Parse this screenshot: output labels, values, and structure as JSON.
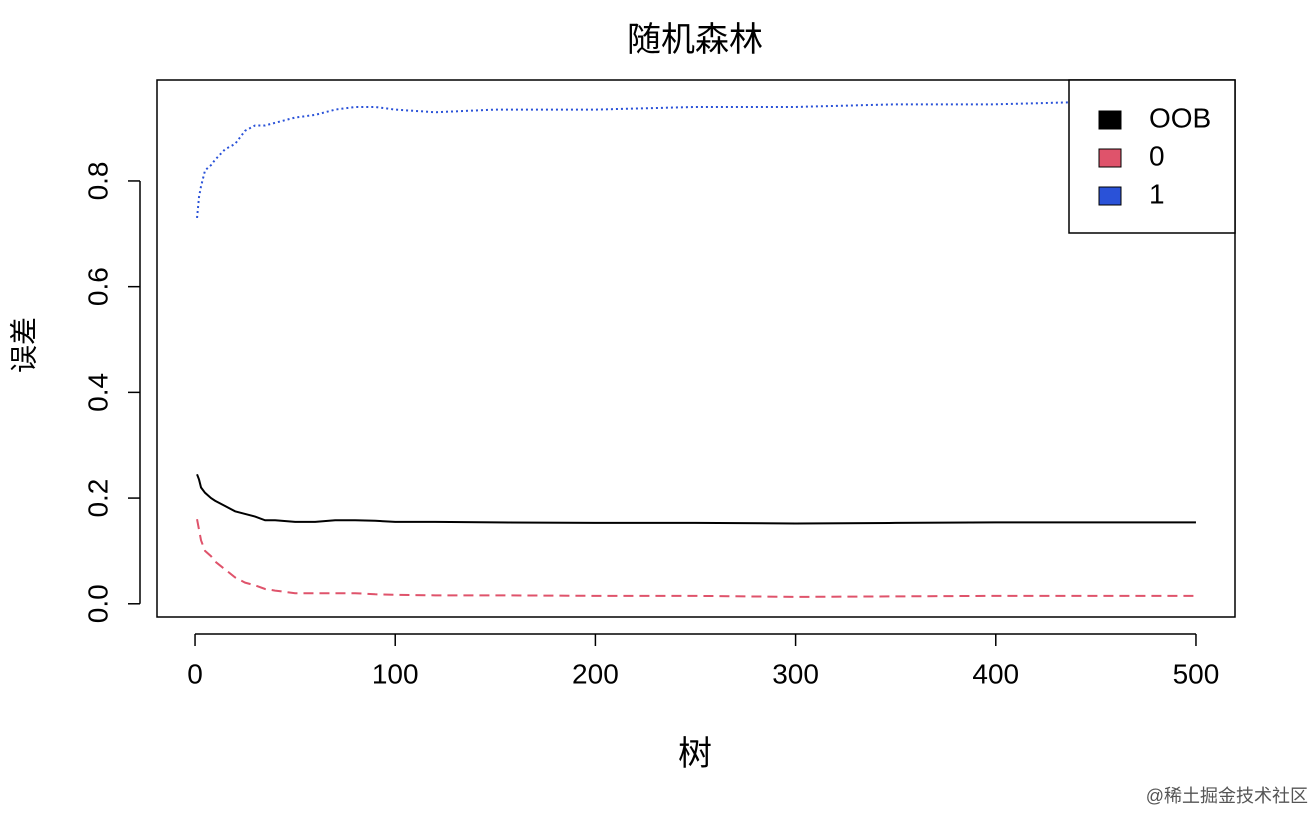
{
  "chart_data": {
    "type": "line",
    "title": "随机森林",
    "x_label": "树",
    "y_label": "误差",
    "x": [
      1,
      2,
      3,
      5,
      8,
      10,
      15,
      20,
      25,
      30,
      35,
      40,
      50,
      60,
      70,
      80,
      90,
      100,
      120,
      150,
      200,
      250,
      300,
      350,
      400,
      450,
      500
    ],
    "series": [
      {
        "name": "OOB",
        "color": "#000000",
        "linestyle": "solid",
        "values": [
          0.245,
          0.235,
          0.22,
          0.21,
          0.2,
          0.195,
          0.185,
          0.175,
          0.17,
          0.165,
          0.158,
          0.158,
          0.155,
          0.155,
          0.158,
          0.158,
          0.157,
          0.155,
          0.155,
          0.154,
          0.153,
          0.153,
          0.152,
          0.153,
          0.154,
          0.154,
          0.154
        ]
      },
      {
        "name": "0",
        "color": "#df536b",
        "linestyle": "dashed",
        "values": [
          0.16,
          0.14,
          0.12,
          0.1,
          0.09,
          0.08,
          0.065,
          0.05,
          0.04,
          0.035,
          0.028,
          0.025,
          0.02,
          0.02,
          0.02,
          0.02,
          0.018,
          0.017,
          0.016,
          0.016,
          0.015,
          0.015,
          0.013,
          0.014,
          0.015,
          0.015,
          0.015
        ]
      },
      {
        "name": "1",
        "color": "#2a52d8",
        "linestyle": "dotted",
        "values": [
          0.73,
          0.77,
          0.79,
          0.82,
          0.83,
          0.84,
          0.86,
          0.87,
          0.895,
          0.905,
          0.905,
          0.91,
          0.92,
          0.925,
          0.935,
          0.94,
          0.94,
          0.935,
          0.93,
          0.935,
          0.935,
          0.94,
          0.94,
          0.945,
          0.945,
          0.95,
          0.95
        ]
      }
    ],
    "xlim": [
      -19.0,
      519.5
    ],
    "xticks": [
      0,
      100,
      200,
      300,
      400,
      500
    ],
    "ylim": [
      -0.025,
      0.991
    ],
    "yticks": [
      {
        "value": 0,
        "label": "0.0"
      },
      0.2,
      0.4,
      0.6,
      0.8
    ],
    "legend": "topright",
    "grid": false
  },
  "watermark": "@稀土掘金技术社区"
}
